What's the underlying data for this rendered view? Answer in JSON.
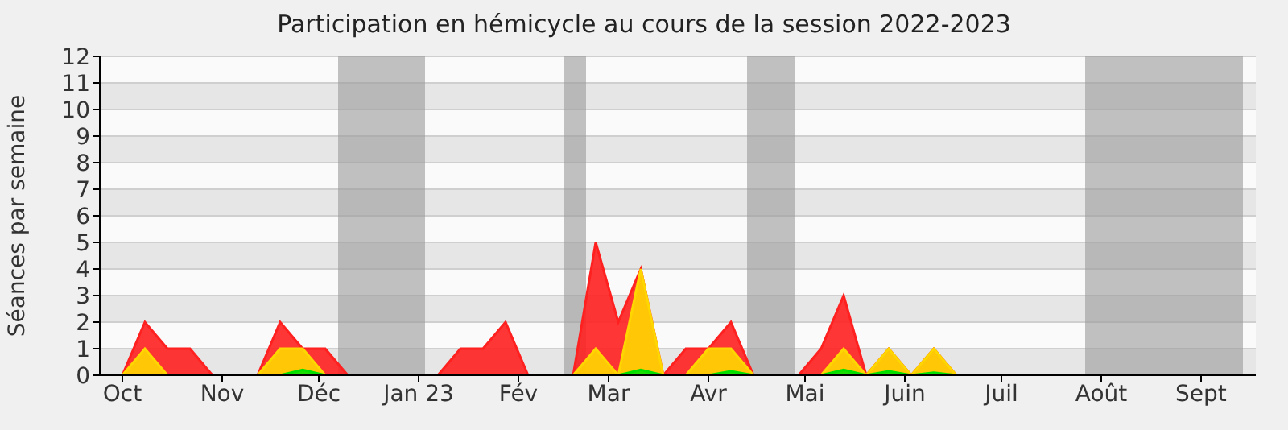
{
  "chart_data": {
    "type": "area",
    "title": "Participation en hémicycle au cours de la session 2022-2023",
    "ylabel": "Séances par semaine",
    "x": [
      "2022-10-01",
      "2022-10-08",
      "2022-10-15",
      "2022-10-22",
      "2022-10-29",
      "2022-11-05",
      "2022-11-12",
      "2022-11-19",
      "2022-11-26",
      "2022-12-03",
      "2022-12-10",
      "2022-12-17",
      "2022-12-24",
      "2022-12-31",
      "2023-01-07",
      "2023-01-14",
      "2023-01-21",
      "2023-01-28",
      "2023-02-04",
      "2023-02-11",
      "2023-02-18",
      "2023-02-25",
      "2023-03-04",
      "2023-03-11",
      "2023-03-18",
      "2023-03-25",
      "2023-04-01",
      "2023-04-08",
      "2023-04-15",
      "2023-04-22",
      "2023-04-29",
      "2023-05-06",
      "2023-05-13",
      "2023-05-20",
      "2023-05-27",
      "2023-06-03",
      "2023-06-10",
      "2023-06-17"
    ],
    "series": [
      {
        "color": "#ff2020",
        "values": [
          0,
          2,
          1,
          1,
          0,
          0,
          0,
          2,
          1,
          1,
          0,
          0,
          0,
          0,
          0,
          1,
          1,
          2,
          0,
          0,
          0,
          5,
          2,
          4,
          0,
          1,
          1,
          2,
          0,
          0,
          0,
          1,
          3,
          0,
          1,
          0,
          1,
          0
        ]
      },
      {
        "color": "#ffd700",
        "values": [
          0,
          1,
          0,
          0,
          0,
          0,
          0,
          1,
          1,
          0,
          0,
          0,
          0,
          0,
          0,
          0,
          0,
          0,
          0,
          0,
          0,
          1,
          0,
          4,
          0,
          0,
          1,
          1,
          0,
          0,
          0,
          0,
          1,
          0,
          1,
          0,
          1,
          0
        ]
      },
      {
        "color": "#00e000",
        "values": [
          0,
          0,
          0,
          0,
          0,
          0,
          0,
          0,
          0.2,
          0,
          0,
          0,
          0,
          0,
          0,
          0,
          0,
          0,
          0,
          0,
          0,
          0,
          0,
          0.2,
          0,
          0,
          0,
          0.15,
          0,
          0,
          0,
          0,
          0.2,
          0,
          0.15,
          0,
          0.1,
          0
        ]
      }
    ],
    "xlim": [
      "2022-09-24",
      "2023-09-18"
    ],
    "xticks": [
      {
        "value": "2022-10-01",
        "label": "Oct"
      },
      {
        "value": "2022-11-01",
        "label": "Nov"
      },
      {
        "value": "2022-12-01",
        "label": "Déc"
      },
      {
        "value": "2023-01-01",
        "label": "Jan 23"
      },
      {
        "value": "2023-02-01",
        "label": "Fév"
      },
      {
        "value": "2023-03-01",
        "label": "Mar"
      },
      {
        "value": "2023-04-01",
        "label": "Avr"
      },
      {
        "value": "2023-05-01",
        "label": "Mai"
      },
      {
        "value": "2023-06-01",
        "label": "Juin"
      },
      {
        "value": "2023-07-01",
        "label": "Juil"
      },
      {
        "value": "2023-08-01",
        "label": "Août"
      },
      {
        "value": "2023-09-01",
        "label": "Sept"
      }
    ],
    "ylim": [
      0,
      12
    ],
    "yticks": [
      0,
      1,
      2,
      3,
      4,
      5,
      6,
      7,
      8,
      9,
      10,
      11,
      12
    ],
    "bands": [
      {
        "axis": "x",
        "from": "2022-12-07",
        "to": "2023-01-03",
        "color": "#999999"
      },
      {
        "axis": "x",
        "from": "2023-02-15",
        "to": "2023-02-22",
        "color": "#999999"
      },
      {
        "axis": "x",
        "from": "2023-04-13",
        "to": "2023-04-28",
        "color": "#999999"
      },
      {
        "axis": "x",
        "from": "2023-07-27",
        "to": "2023-09-14",
        "color": "#999999"
      }
    ],
    "grid": "y"
  }
}
